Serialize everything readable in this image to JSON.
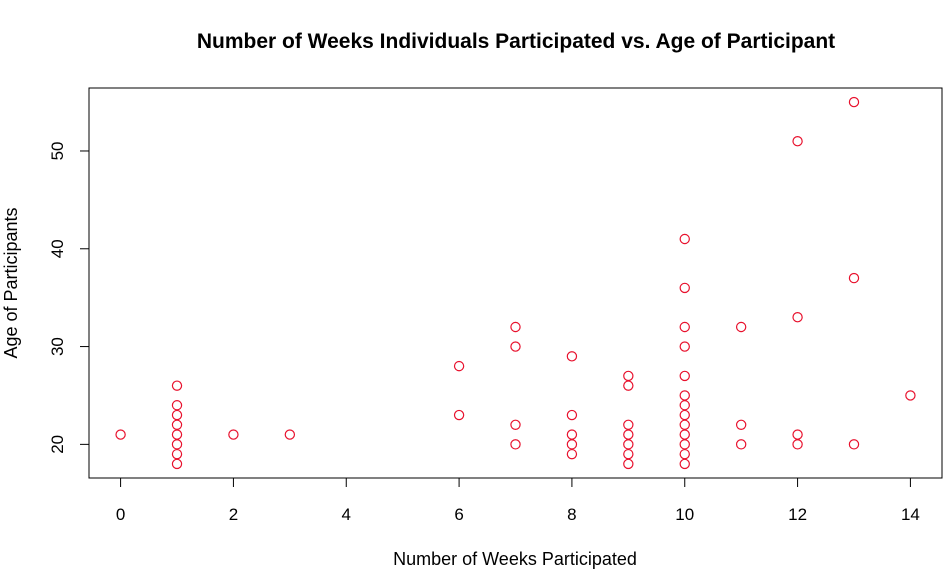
{
  "chart_data": {
    "type": "scatter",
    "title": "Number of Weeks Individuals Participated vs. Age of Participant",
    "xlabel": "Number of Weeks Participated",
    "ylabel": "Age of Participants",
    "xlim": [
      -0.56,
      14.56
    ],
    "ylim": [
      16.56,
      56.44
    ],
    "xticks": [
      0,
      2,
      4,
      6,
      8,
      10,
      12,
      14
    ],
    "yticks": [
      20,
      30,
      40,
      50
    ],
    "grid": false,
    "legend": "none",
    "marker": "open-circle",
    "color": "#e8112d",
    "points": [
      {
        "x": 0,
        "y": 21
      },
      {
        "x": 1,
        "y": 26
      },
      {
        "x": 1,
        "y": 24
      },
      {
        "x": 1,
        "y": 23
      },
      {
        "x": 1,
        "y": 22
      },
      {
        "x": 1,
        "y": 21
      },
      {
        "x": 1,
        "y": 20
      },
      {
        "x": 1,
        "y": 19
      },
      {
        "x": 1,
        "y": 18
      },
      {
        "x": 2,
        "y": 21
      },
      {
        "x": 3,
        "y": 21
      },
      {
        "x": 6,
        "y": 28
      },
      {
        "x": 6,
        "y": 23
      },
      {
        "x": 7,
        "y": 32
      },
      {
        "x": 7,
        "y": 30
      },
      {
        "x": 7,
        "y": 22
      },
      {
        "x": 7,
        "y": 20
      },
      {
        "x": 8,
        "y": 29
      },
      {
        "x": 8,
        "y": 23
      },
      {
        "x": 8,
        "y": 21
      },
      {
        "x": 8,
        "y": 20
      },
      {
        "x": 8,
        "y": 19
      },
      {
        "x": 9,
        "y": 27
      },
      {
        "x": 9,
        "y": 26
      },
      {
        "x": 9,
        "y": 22
      },
      {
        "x": 9,
        "y": 21
      },
      {
        "x": 9,
        "y": 20
      },
      {
        "x": 9,
        "y": 19
      },
      {
        "x": 9,
        "y": 18
      },
      {
        "x": 10,
        "y": 41
      },
      {
        "x": 10,
        "y": 36
      },
      {
        "x": 10,
        "y": 32
      },
      {
        "x": 10,
        "y": 30
      },
      {
        "x": 10,
        "y": 27
      },
      {
        "x": 10,
        "y": 25
      },
      {
        "x": 10,
        "y": 24
      },
      {
        "x": 10,
        "y": 23
      },
      {
        "x": 10,
        "y": 22
      },
      {
        "x": 10,
        "y": 21
      },
      {
        "x": 10,
        "y": 20
      },
      {
        "x": 10,
        "y": 19
      },
      {
        "x": 10,
        "y": 18
      },
      {
        "x": 11,
        "y": 32
      },
      {
        "x": 11,
        "y": 22
      },
      {
        "x": 11,
        "y": 20
      },
      {
        "x": 12,
        "y": 51
      },
      {
        "x": 12,
        "y": 33
      },
      {
        "x": 12,
        "y": 21
      },
      {
        "x": 12,
        "y": 20
      },
      {
        "x": 13,
        "y": 55
      },
      {
        "x": 13,
        "y": 37
      },
      {
        "x": 13,
        "y": 20
      },
      {
        "x": 14,
        "y": 25
      }
    ]
  }
}
